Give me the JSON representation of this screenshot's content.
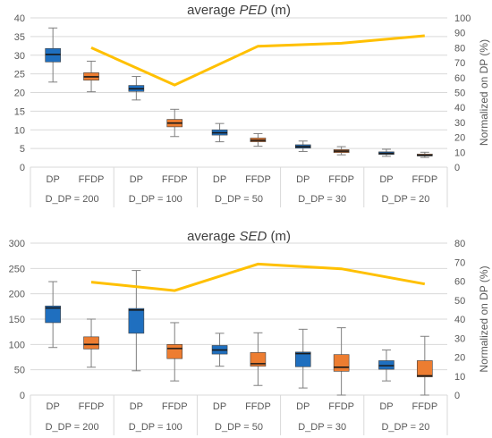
{
  "colors": {
    "dp": "#1f6fbf",
    "ffdp": "#ed7d31",
    "normalized": "#ffc000",
    "grid": "#d9d9d9",
    "whisker": "#7f7f7f",
    "median": "#1a1a1a"
  },
  "chart_data": [
    {
      "type": "boxplot",
      "title_prefix": "average ",
      "title_var": "PED",
      "title_suffix": " (m)",
      "y_left": {
        "range": [
          0,
          40
        ],
        "ticks": [
          0,
          5,
          10,
          15,
          20,
          25,
          30,
          35,
          40
        ]
      },
      "y_right": {
        "label": "Normalized on DP (%)",
        "range": [
          0,
          100
        ],
        "ticks": [
          0,
          10,
          20,
          30,
          40,
          50,
          60,
          70,
          80,
          90,
          100
        ]
      },
      "grid": true,
      "groups": [
        {
          "label": "D_DP = 200",
          "boxes": [
            {
              "label": "DP",
              "series": "dp",
              "min": 22.8,
              "q1": 28.2,
              "median": 30.2,
              "q3": 31.8,
              "max": 37.3
            },
            {
              "label": "FFDP",
              "series": "ffdp",
              "min": 20.2,
              "q1": 23.3,
              "median": 24.2,
              "q3": 25.3,
              "max": 28.4
            }
          ]
        },
        {
          "label": "D_DP = 100",
          "boxes": [
            {
              "label": "DP",
              "series": "dp",
              "min": 18.0,
              "q1": 20.3,
              "median": 21.0,
              "q3": 21.9,
              "max": 24.3
            },
            {
              "label": "FFDP",
              "series": "ffdp",
              "min": 8.2,
              "q1": 10.8,
              "median": 11.8,
              "q3": 12.8,
              "max": 15.5
            }
          ]
        },
        {
          "label": "D_DP = 50",
          "boxes": [
            {
              "label": "DP",
              "series": "dp",
              "min": 6.8,
              "q1": 8.6,
              "median": 9.2,
              "q3": 10.0,
              "max": 11.7
            },
            {
              "label": "FFDP",
              "series": "ffdp",
              "min": 5.6,
              "q1": 6.8,
              "median": 7.2,
              "q3": 7.8,
              "max": 9.0
            }
          ]
        },
        {
          "label": "D_DP = 30",
          "boxes": [
            {
              "label": "DP",
              "series": "dp",
              "min": 4.2,
              "q1": 5.1,
              "median": 5.5,
              "q3": 6.0,
              "max": 7.0
            },
            {
              "label": "FFDP",
              "series": "ffdp",
              "min": 3.3,
              "q1": 3.9,
              "median": 4.3,
              "q3": 4.7,
              "max": 5.5
            }
          ]
        },
        {
          "label": "D_DP = 20",
          "boxes": [
            {
              "label": "DP",
              "series": "dp",
              "min": 2.9,
              "q1": 3.4,
              "median": 3.7,
              "q3": 4.1,
              "max": 4.8
            },
            {
              "label": "FFDP",
              "series": "ffdp",
              "min": 2.6,
              "q1": 3.0,
              "median": 3.2,
              "q3": 3.5,
              "max": 4.0
            }
          ]
        }
      ],
      "normalized": [
        80,
        55,
        81,
        83,
        88
      ]
    },
    {
      "type": "boxplot",
      "title_prefix": "average ",
      "title_var": "SED",
      "title_suffix": " (m)",
      "y_left": {
        "range": [
          0,
          300
        ],
        "ticks": [
          0,
          50,
          100,
          150,
          200,
          250,
          300
        ]
      },
      "y_right": {
        "label": "Normalized on DP (%)",
        "range": [
          0,
          80
        ],
        "ticks": [
          0,
          10,
          20,
          30,
          40,
          50,
          60,
          70,
          80
        ]
      },
      "grid": true,
      "groups": [
        {
          "label": "D_DP = 200",
          "boxes": [
            {
              "label": "DP",
              "series": "dp",
              "min": 94,
              "q1": 143,
              "median": 172,
              "q3": 176,
              "max": 224
            },
            {
              "label": "FFDP",
              "series": "ffdp",
              "min": 55,
              "q1": 91,
              "median": 100,
              "q3": 115,
              "max": 150
            }
          ]
        },
        {
          "label": "D_DP = 100",
          "boxes": [
            {
              "label": "DP",
              "series": "dp",
              "min": 48,
              "q1": 122,
              "median": 168,
              "q3": 171,
              "max": 246
            },
            {
              "label": "FFDP",
              "series": "ffdp",
              "min": 28,
              "q1": 72,
              "median": 92,
              "q3": 100,
              "max": 143
            }
          ]
        },
        {
          "label": "D_DP = 50",
          "boxes": [
            {
              "label": "DP",
              "series": "dp",
              "min": 57,
              "q1": 81,
              "median": 89,
              "q3": 98,
              "max": 122
            },
            {
              "label": "FFDP",
              "series": "ffdp",
              "min": 19,
              "q1": 57,
              "median": 62,
              "q3": 84,
              "max": 123
            }
          ]
        },
        {
          "label": "D_DP = 30",
          "boxes": [
            {
              "label": "DP",
              "series": "dp",
              "min": 14,
              "q1": 56,
              "median": 82,
              "q3": 85,
              "max": 130
            },
            {
              "label": "FFDP",
              "series": "ffdp",
              "min": 0,
              "q1": 47,
              "median": 55,
              "q3": 80,
              "max": 133
            }
          ]
        },
        {
          "label": "D_DP = 20",
          "boxes": [
            {
              "label": "DP",
              "series": "dp",
              "min": 28,
              "q1": 51,
              "median": 58,
              "q3": 68,
              "max": 89
            },
            {
              "label": "FFDP",
              "series": "ffdp",
              "min": 0,
              "q1": 36,
              "median": 38,
              "q3": 68,
              "max": 116
            }
          ]
        }
      ],
      "normalized": [
        59.5,
        55,
        69,
        66.5,
        58.5
      ]
    }
  ]
}
